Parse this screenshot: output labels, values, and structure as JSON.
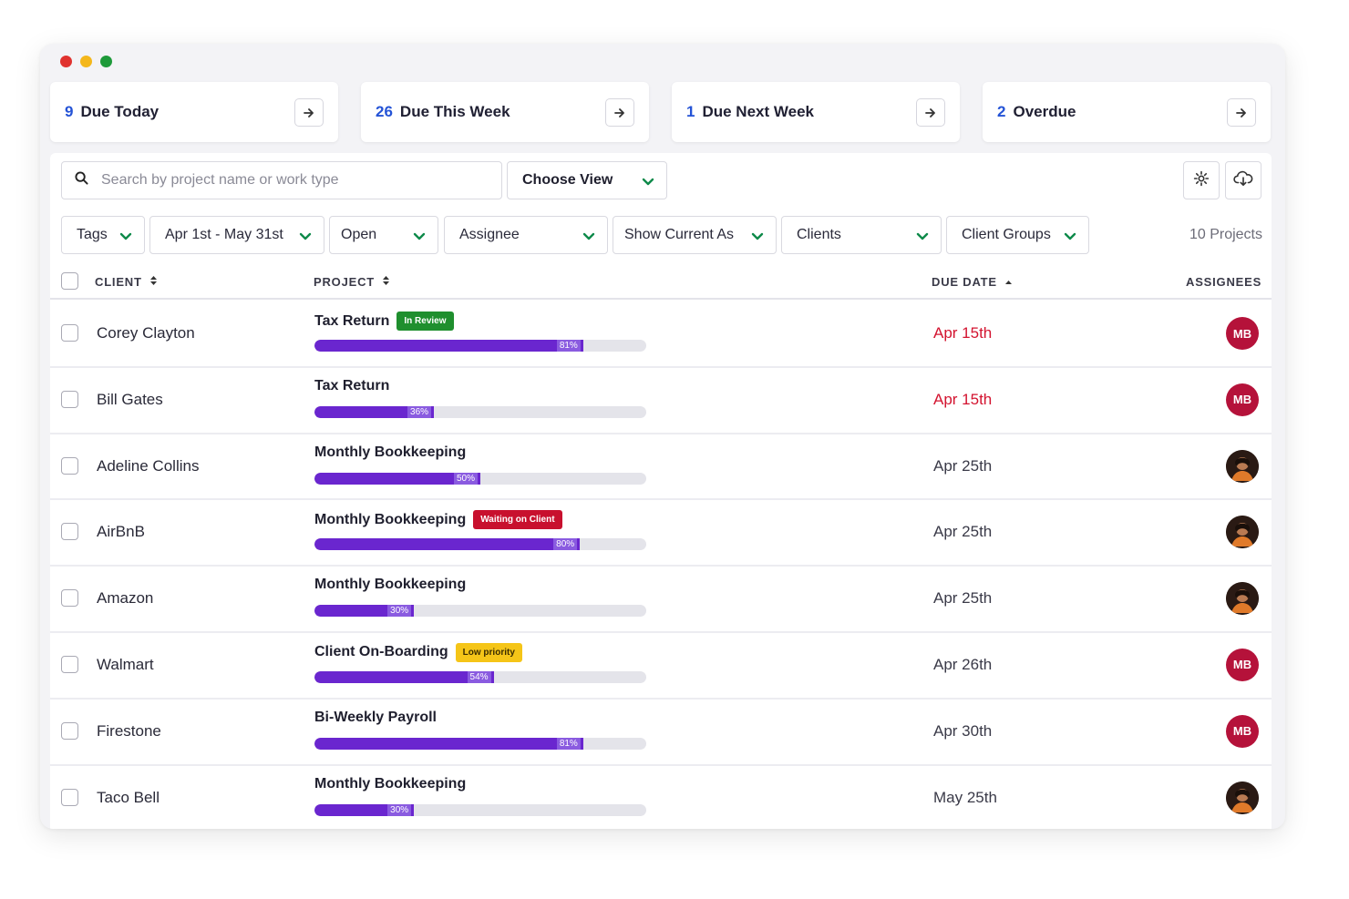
{
  "window": {
    "dot_colors": [
      "#e0322f",
      "#f4b71b",
      "#1e9a3a"
    ]
  },
  "summary_cards": [
    {
      "count": "9",
      "label": "Due Today"
    },
    {
      "count": "26",
      "label": "Due This Week"
    },
    {
      "count": "1",
      "label": "Due Next Week"
    },
    {
      "count": "2",
      "label": "Overdue"
    }
  ],
  "toolbar": {
    "search_placeholder": "Search by project name or work type",
    "choose_view": "Choose View",
    "settings_icon": "gear-icon",
    "export_icon": "cloud-download-icon"
  },
  "filters": [
    {
      "label": "Tags"
    },
    {
      "label": "Apr 1st - May 31st"
    },
    {
      "label": "Open"
    },
    {
      "label": "Assignee"
    },
    {
      "label": "Show Current As"
    },
    {
      "label": "Clients"
    },
    {
      "label": "Client Groups"
    }
  ],
  "project_count": "10 Projects",
  "table": {
    "headers": {
      "client": "CLIENT",
      "project": "PROJECT",
      "due_date": "DUE DATE",
      "assignees": "ASSIGNEES"
    },
    "rows": [
      {
        "client": "Corey Clayton",
        "project": "Tax Return",
        "tag": "In Review",
        "tag_color": "#1f8f2e",
        "progress": 81,
        "progress_label": "81%",
        "due": "Apr 15th",
        "overdue": true,
        "assignee": "MB"
      },
      {
        "client": "Bill Gates",
        "project": "Tax Return",
        "tag": "",
        "tag_color": "",
        "progress": 36,
        "progress_label": "36%",
        "due": "Apr 15th",
        "overdue": true,
        "assignee": "MB"
      },
      {
        "client": "Adeline Collins",
        "project": "Monthly Bookkeeping",
        "tag": "",
        "tag_color": "",
        "progress": 50,
        "progress_label": "50%",
        "due": "Apr 25th",
        "overdue": false,
        "assignee": "photo"
      },
      {
        "client": "AirBnB",
        "project": "Monthly Bookkeeping",
        "tag": "Waiting on Client",
        "tag_color": "#c8102e",
        "progress": 80,
        "progress_label": "80%",
        "due": "Apr 25th",
        "overdue": false,
        "assignee": "photo"
      },
      {
        "client": "Amazon",
        "project": "Monthly Bookkeeping",
        "tag": "",
        "tag_color": "",
        "progress": 30,
        "progress_label": "30%",
        "due": "Apr 25th",
        "overdue": false,
        "assignee": "photo"
      },
      {
        "client": "Walmart",
        "project": "Client On-Boarding",
        "tag": "Low priority",
        "tag_color": "#f5c518",
        "progress": 54,
        "progress_label": "54%",
        "due": "Apr 26th",
        "overdue": false,
        "assignee": "MB"
      },
      {
        "client": "Firestone",
        "project": "Bi-Weekly Payroll",
        "tag": "",
        "tag_color": "",
        "progress": 81,
        "progress_label": "81%",
        "due": "Apr 30th",
        "overdue": false,
        "assignee": "MB"
      },
      {
        "client": "Taco Bell",
        "project": "Monthly Bookkeeping",
        "tag": "",
        "tag_color": "",
        "progress": 30,
        "progress_label": "30%",
        "due": "May 25th",
        "overdue": false,
        "assignee": "photo"
      }
    ]
  },
  "colors": {
    "accent": "#2453d6",
    "progress": "#6a26cf",
    "overdue": "#d3132f",
    "avatar": "#b5123a"
  }
}
